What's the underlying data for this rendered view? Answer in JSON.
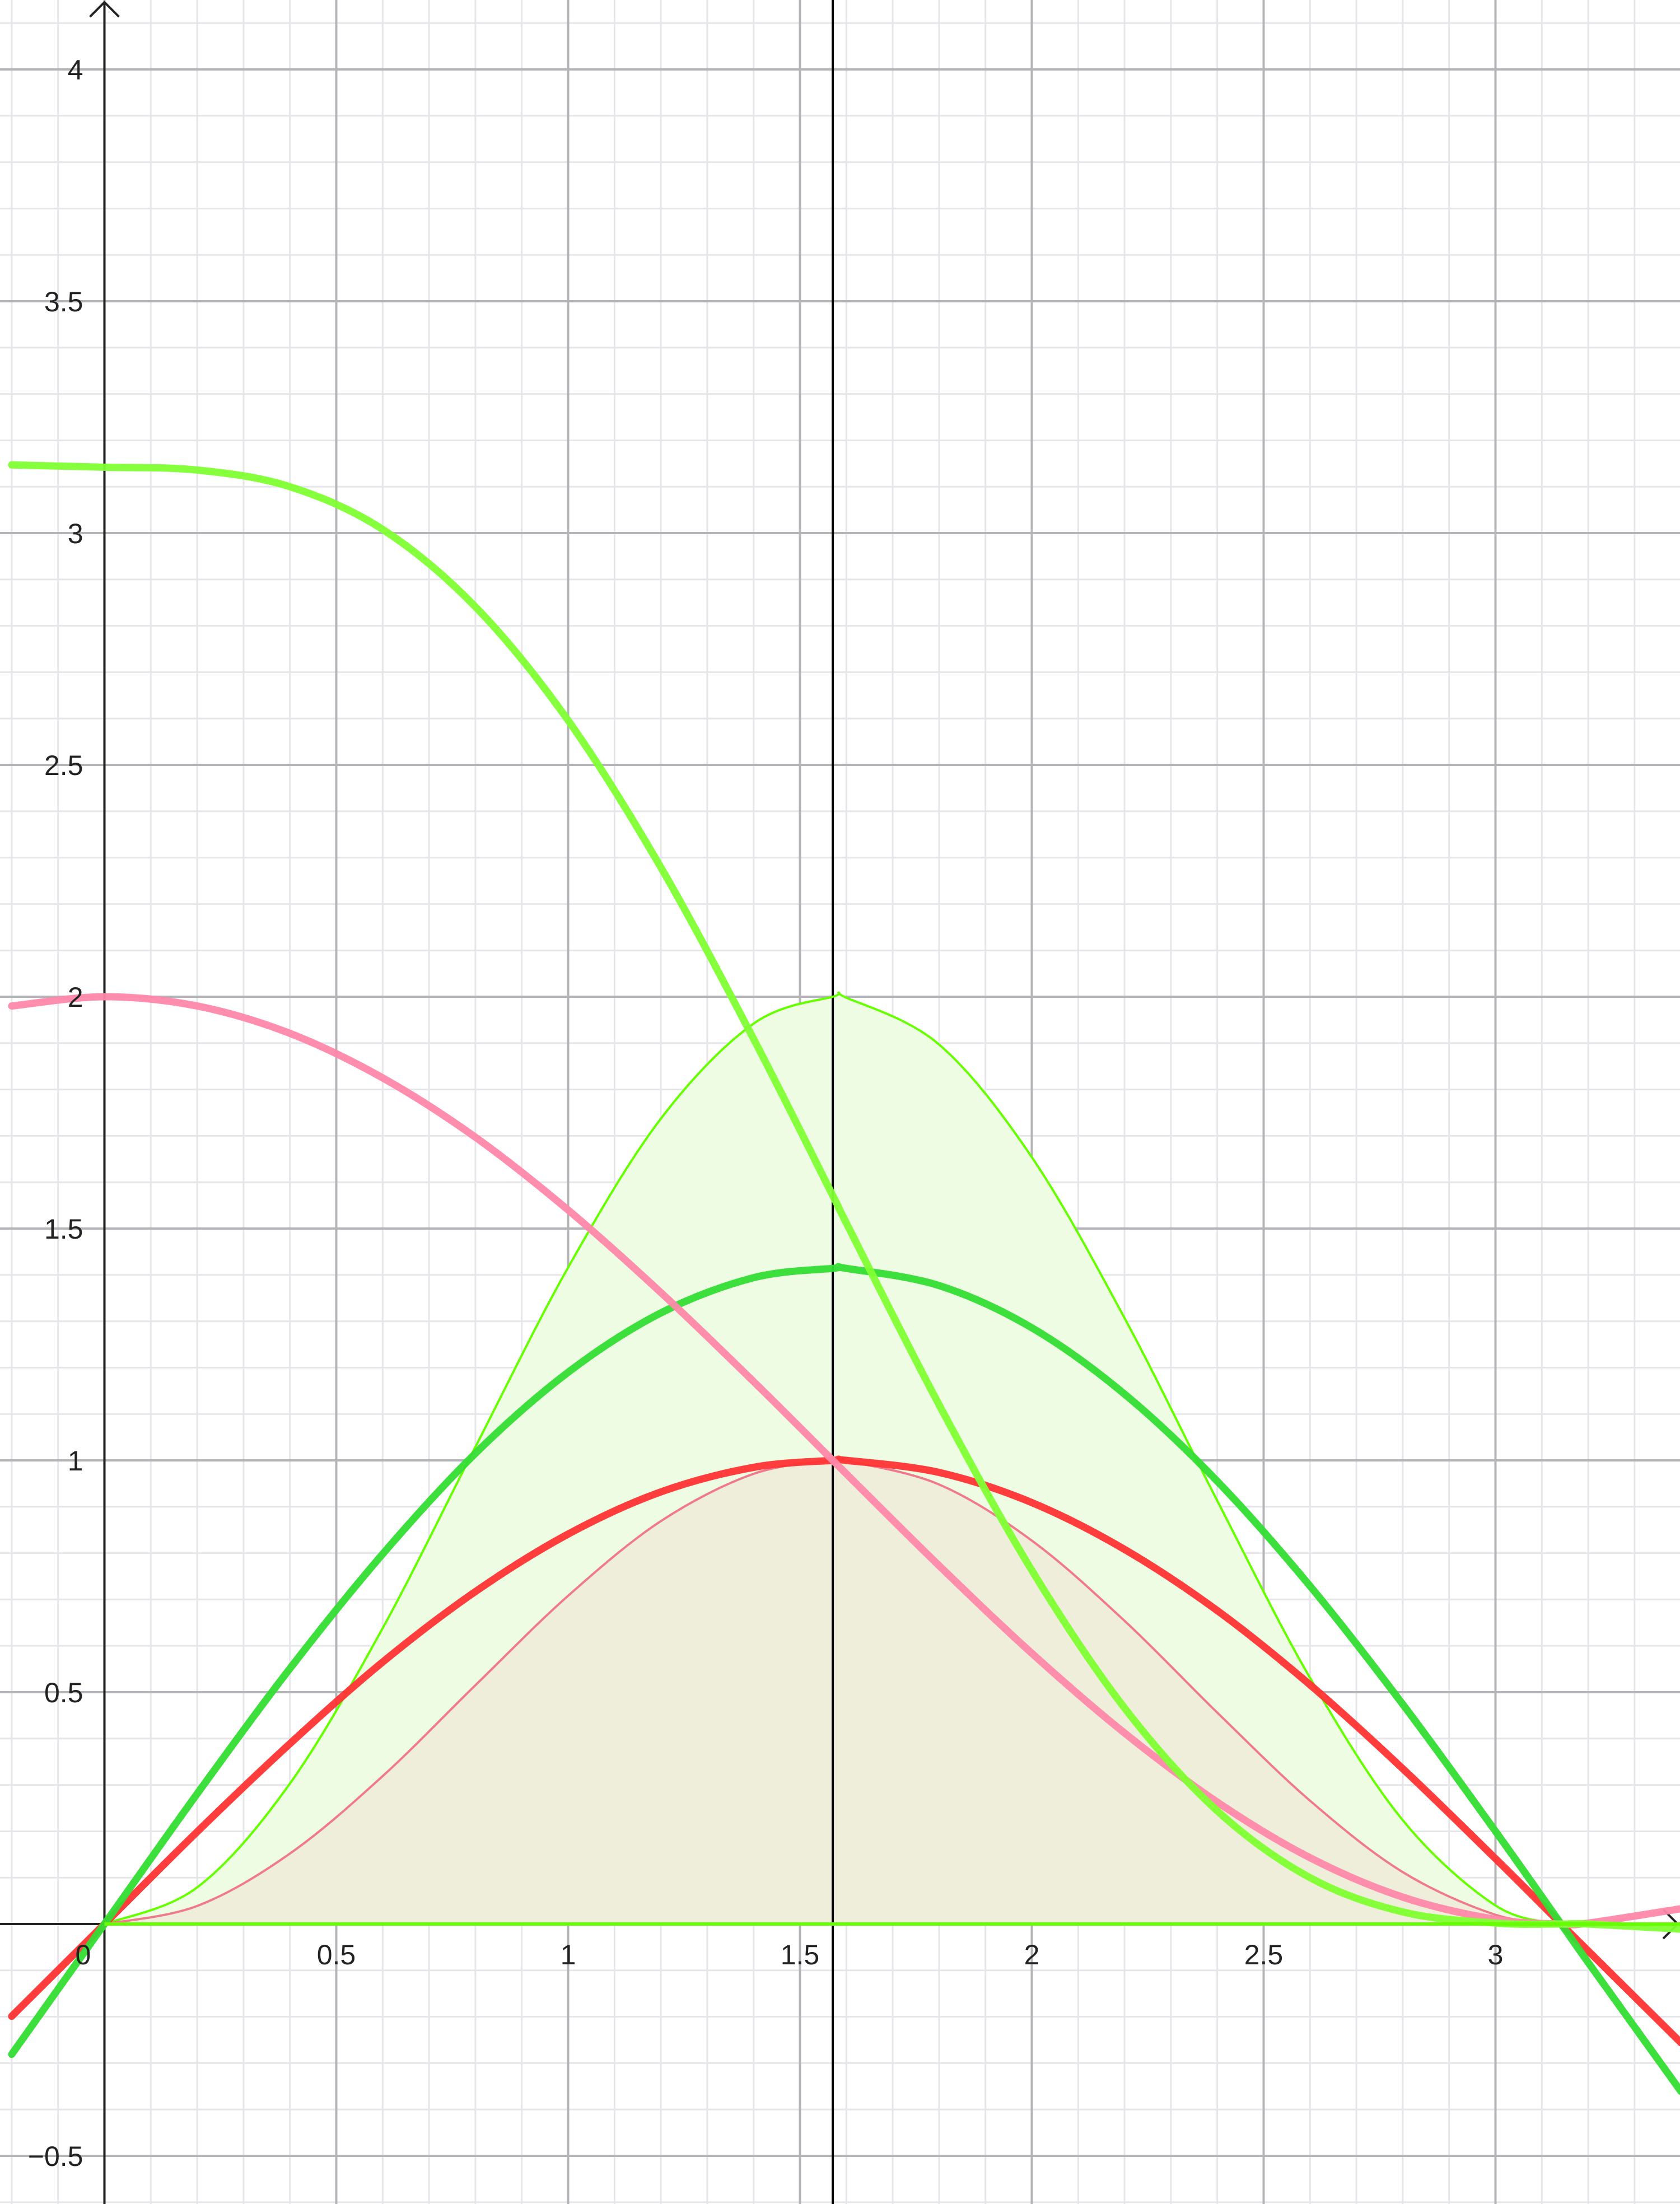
{
  "chart_data": {
    "type": "line",
    "title": "",
    "xlabel": "",
    "ylabel": "",
    "xlim": [
      -0.224,
      3.397
    ],
    "ylim": [
      -0.606,
      4.15
    ],
    "grid": {
      "major": 0.5,
      "minor": 0.1,
      "on": true
    },
    "x_ticks": [
      "0",
      "0.5",
      "1",
      "1.5",
      "2",
      "2.5",
      "3"
    ],
    "x_tick_values": [
      0,
      0.5,
      1,
      1.5,
      2,
      2.5,
      3
    ],
    "y_ticks": [
      "−0.5",
      "0.5",
      "1",
      "1.5",
      "2",
      "2.5",
      "3",
      "3.5",
      "4"
    ],
    "y_tick_values": [
      -0.5,
      0.5,
      1,
      1.5,
      2,
      2.5,
      3,
      3.5,
      4
    ],
    "vertical_line_x": 1.5708,
    "x": [
      -0.2,
      0,
      0.2,
      0.4,
      0.6,
      0.8,
      1.0,
      1.2,
      1.4,
      1.5708,
      1.6,
      1.8,
      2.0,
      2.2,
      2.4,
      2.6,
      2.8,
      3.0,
      3.1416,
      3.2,
      3.4
    ],
    "series": [
      {
        "color": "#66ff00",
        "style": "thin-filled",
        "fill": "#eefce4",
        "values": [
          null,
          0,
          0.079,
          0.303,
          0.638,
          1.029,
          1.416,
          1.737,
          1.942,
          2,
          1.998,
          1.897,
          1.654,
          1.307,
          0.913,
          0.531,
          0.224,
          0.04,
          0,
          null,
          null
        ]
      },
      {
        "color": "#f07a8c",
        "style": "thin-filled",
        "fill": "#eeeedb",
        "values": [
          null,
          0,
          0.039,
          0.152,
          0.319,
          0.515,
          0.708,
          0.869,
          0.971,
          1,
          0.999,
          0.948,
          0.827,
          0.654,
          0.456,
          0.266,
          0.112,
          0.02,
          0,
          null,
          null
        ]
      },
      {
        "color": "#ff3333",
        "style": "thick",
        "values": [
          -0.199,
          0,
          0.199,
          0.389,
          0.565,
          0.717,
          0.841,
          0.932,
          0.985,
          1,
          1.0,
          0.974,
          0.909,
          0.808,
          0.676,
          0.516,
          0.335,
          0.141,
          0,
          -0.058,
          -0.256
        ]
      },
      {
        "color": "#33dd33",
        "style": "thick",
        "values": [
          -0.281,
          0,
          0.281,
          0.551,
          0.798,
          1.015,
          1.19,
          1.318,
          1.394,
          1.414,
          1.414,
          1.377,
          1.286,
          1.143,
          0.955,
          0.729,
          0.474,
          0.2,
          0,
          -0.083,
          -0.361
        ]
      },
      {
        "color": "#ff88aa",
        "style": "thick",
        "values": [
          1.98,
          2,
          1.98,
          1.921,
          1.825,
          1.697,
          1.54,
          1.362,
          1.17,
          1,
          0.971,
          0.773,
          0.584,
          0.412,
          0.263,
          0.143,
          0.058,
          0.01,
          0,
          0.002,
          0.033
        ]
      },
      {
        "color": "#80ff33",
        "style": "thick",
        "values": [
          3.147,
          3.142,
          3.136,
          3.1,
          3.008,
          2.841,
          2.596,
          2.279,
          1.909,
          1.571,
          1.512,
          1.12,
          0.763,
          0.466,
          0.244,
          0.1,
          0.026,
          0.002,
          0,
          0,
          -0.011
        ]
      }
    ],
    "colors": {
      "axis": "#222222",
      "major_grid": "#b4b4b8",
      "minor_grid": "#e6e6ea",
      "vertical_line": "#000000"
    }
  }
}
